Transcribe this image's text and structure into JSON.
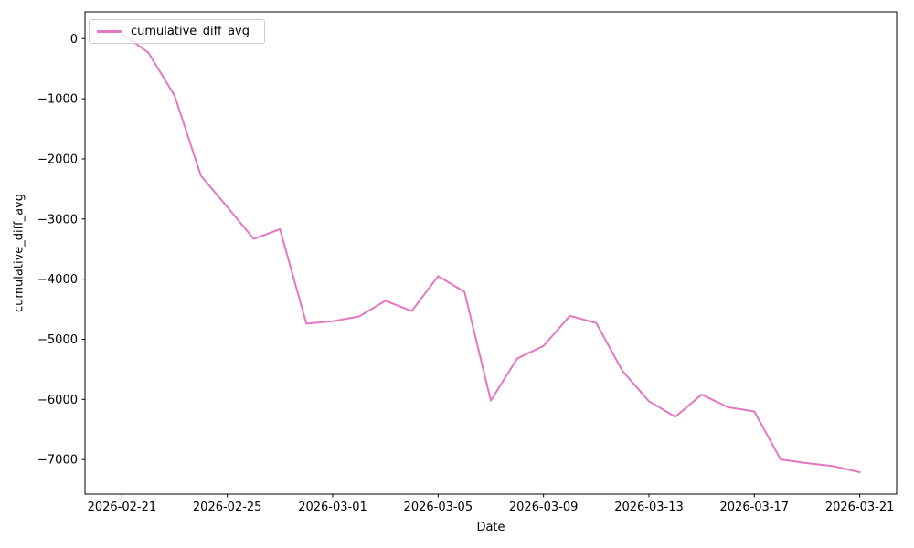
{
  "figure": {
    "background": "#ffffff"
  },
  "chart_data": {
    "type": "line",
    "title": "",
    "xlabel": "Date",
    "ylabel": "cumulative_diff_avg",
    "grid": false,
    "x": [
      "2026-02-21",
      "2026-02-22",
      "2026-02-23",
      "2026-02-24",
      "2026-02-25",
      "2026-02-26",
      "2026-02-27",
      "2026-02-28",
      "2026-03-01",
      "2026-03-02",
      "2026-03-03",
      "2026-03-04",
      "2026-03-05",
      "2026-03-06",
      "2026-03-07",
      "2026-03-08",
      "2026-03-09",
      "2026-03-10",
      "2026-03-11",
      "2026-03-12",
      "2026-03-13",
      "2026-03-14",
      "2026-03-15",
      "2026-03-16",
      "2026-03-17",
      "2026-03-18",
      "2026-03-19",
      "2026-03-20",
      "2026-03-21"
    ],
    "series": [
      {
        "name": "cumulative_diff_avg",
        "color": "#e377c2",
        "values": [
          80,
          -230,
          -950,
          -2280,
          -2800,
          -3330,
          -3170,
          -4740,
          -4700,
          -4620,
          -4360,
          -4530,
          -3950,
          -4210,
          -6020,
          -5320,
          -5110,
          -4610,
          -4730,
          -5530,
          -6030,
          -6290,
          -5920,
          -6130,
          -6200,
          -7000,
          -7060,
          -7110,
          -7210
        ]
      }
    ],
    "x_tick_labels": [
      "2026-02-21",
      "2026-02-25",
      "2026-03-01",
      "2026-03-05",
      "2026-03-09",
      "2026-03-13",
      "2026-03-17",
      "2026-03-21"
    ],
    "x_tick_days": [
      0,
      4,
      8,
      12,
      16,
      20,
      24,
      28
    ],
    "y_ticks": [
      0,
      -1000,
      -2000,
      -3000,
      -4000,
      -5000,
      -6000,
      -7000
    ],
    "y_tick_labels": [
      "0",
      "−1000",
      "−2000",
      "−3000",
      "−4000",
      "−5000",
      "−6000",
      "−7000"
    ],
    "ylim": [
      -7574.5,
      444.5
    ],
    "xlim_days": [
      -1.4,
      29.4
    ],
    "axis_color": "#000000",
    "legend": {
      "position": "upper left",
      "label": "cumulative_diff_avg"
    }
  }
}
